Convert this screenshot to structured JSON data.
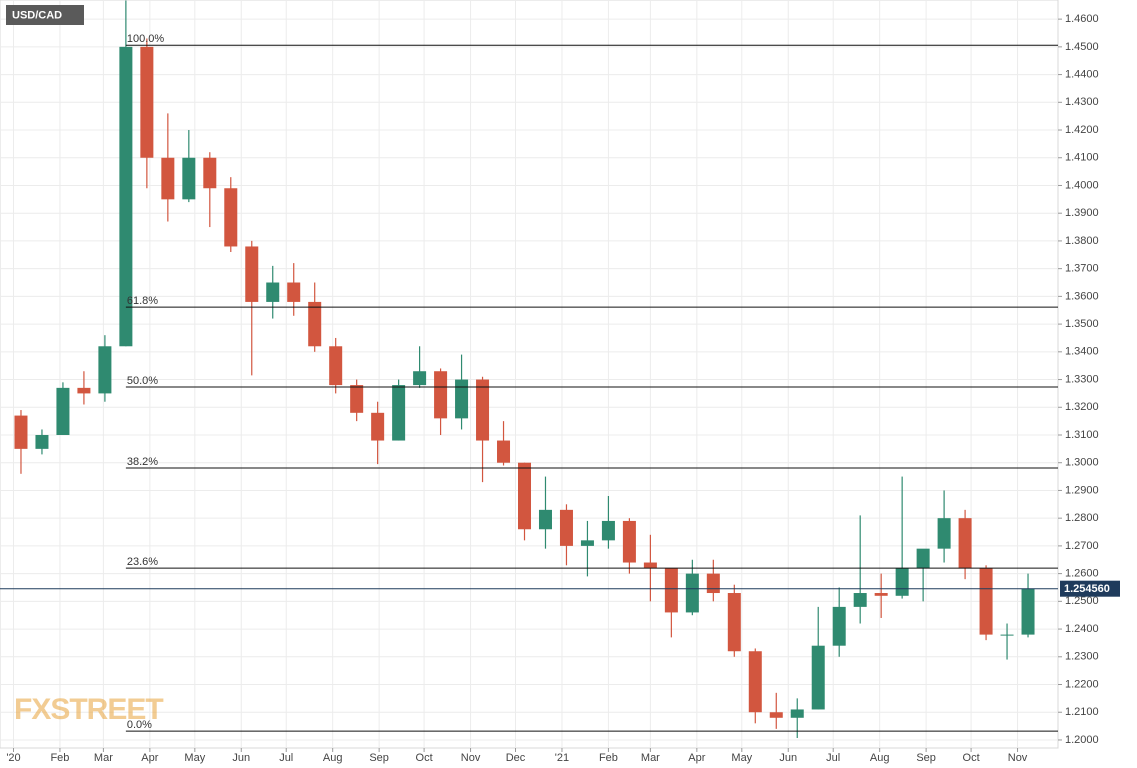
{
  "chart_data": {
    "type": "candlestick",
    "title": "USD/CAD",
    "watermark": "FXSTREET",
    "up_color": "#2f8a70",
    "down_color": "#d2563f",
    "grid": true,
    "x": [
      -2,
      12,
      26,
      40,
      54,
      68,
      82,
      96,
      110,
      124,
      138,
      152,
      166,
      180,
      194,
      208,
      222,
      236,
      250,
      264,
      278,
      292,
      306,
      320,
      334,
      348,
      362,
      376,
      390,
      404,
      418,
      432,
      446,
      460,
      474,
      488,
      502,
      516,
      530,
      544,
      558,
      572,
      586,
      600,
      614,
      628,
      642,
      656,
      670
    ],
    "open": [
      1.317,
      1.305,
      1.31,
      1.327,
      1.325,
      1.342,
      1.45,
      1.41,
      1.395,
      1.41,
      1.399,
      1.378,
      1.358,
      1.365,
      1.358,
      1.342,
      1.328,
      1.318,
      1.308,
      1.328,
      1.333,
      1.316,
      1.33,
      1.308,
      1.3,
      1.276,
      1.283,
      1.27,
      1.272,
      1.279,
      1.264,
      1.262,
      1.246,
      1.26,
      1.253,
      1.232,
      1.21,
      1.208,
      1.211,
      1.234,
      1.248,
      1.253,
      1.252,
      1.262,
      1.269,
      1.28,
      1.262,
      1.238,
      1.238
    ],
    "high": [
      1.319,
      1.312,
      1.329,
      1.333,
      1.346,
      1.4667,
      1.453,
      1.426,
      1.42,
      1.412,
      1.403,
      1.38,
      1.371,
      1.372,
      1.365,
      1.345,
      1.33,
      1.322,
      1.33,
      1.342,
      1.334,
      1.339,
      1.331,
      1.315,
      1.3,
      1.295,
      1.285,
      1.279,
      1.288,
      1.28,
      1.274,
      1.262,
      1.265,
      1.265,
      1.256,
      1.233,
      1.217,
      1.215,
      1.248,
      1.255,
      1.281,
      1.26,
      1.295,
      1.268,
      1.29,
      1.283,
      1.263,
      1.242,
      1.26
    ],
    "low": [
      1.296,
      1.303,
      1.31,
      1.321,
      1.322,
      1.342,
      1.399,
      1.387,
      1.394,
      1.385,
      1.376,
      1.3315,
      1.352,
      1.353,
      1.34,
      1.325,
      1.315,
      1.2995,
      1.308,
      1.327,
      1.31,
      1.312,
      1.293,
      1.299,
      1.272,
      1.269,
      1.263,
      1.259,
      1.269,
      1.26,
      1.25,
      1.237,
      1.245,
      1.25,
      1.23,
      1.206,
      1.204,
      1.2007,
      1.211,
      1.23,
      1.242,
      1.244,
      1.251,
      1.25,
      1.264,
      1.258,
      1.236,
      1.229,
      1.237
    ],
    "close": [
      1.305,
      1.31,
      1.327,
      1.325,
      1.342,
      1.45,
      1.41,
      1.395,
      1.41,
      1.399,
      1.378,
      1.358,
      1.365,
      1.358,
      1.342,
      1.328,
      1.318,
      1.308,
      1.328,
      1.333,
      1.316,
      1.33,
      1.308,
      1.3,
      1.276,
      1.283,
      1.27,
      1.272,
      1.279,
      1.264,
      1.262,
      1.246,
      1.26,
      1.253,
      1.232,
      1.21,
      1.208,
      1.211,
      1.234,
      1.248,
      1.253,
      1.252,
      1.262,
      1.269,
      1.28,
      1.262,
      1.238,
      1.238,
      1.25456
    ],
    "current_price": {
      "value": 1.25456,
      "label": "1.254560",
      "color": "#1f3b5c"
    },
    "fib_levels": [
      {
        "name": "100.0%",
        "value": 1.4506
      },
      {
        "name": "61.8%",
        "value": 1.3561
      },
      {
        "name": "50.0%",
        "value": 1.3273
      },
      {
        "name": "38.2%",
        "value": 1.2981
      },
      {
        "name": "23.6%",
        "value": 1.262
      },
      {
        "name": "0.0%",
        "value": 1.2032
      }
    ],
    "xlim": [
      -9,
      697
    ],
    "xticks": [
      {
        "value": 0,
        "label": "'20"
      },
      {
        "value": 31,
        "label": "Feb"
      },
      {
        "value": 60,
        "label": "Mar"
      },
      {
        "value": 91,
        "label": "Apr"
      },
      {
        "value": 121,
        "label": "May"
      },
      {
        "value": 152,
        "label": "Jun"
      },
      {
        "value": 182,
        "label": "Jul"
      },
      {
        "value": 213,
        "label": "Aug"
      },
      {
        "value": 244,
        "label": "Sep"
      },
      {
        "value": 274,
        "label": "Oct"
      },
      {
        "value": 305,
        "label": "Nov"
      },
      {
        "value": 335,
        "label": "Dec"
      },
      {
        "value": 366,
        "label": "'21"
      },
      {
        "value": 397,
        "label": "Feb"
      },
      {
        "value": 425,
        "label": "Mar"
      },
      {
        "value": 456,
        "label": "Apr"
      },
      {
        "value": 486,
        "label": "May"
      },
      {
        "value": 517,
        "label": "Jun"
      },
      {
        "value": 547,
        "label": "Jul"
      },
      {
        "value": 578,
        "label": "Aug"
      },
      {
        "value": 609,
        "label": "Sep"
      },
      {
        "value": 639,
        "label": "Oct"
      },
      {
        "value": 670,
        "label": "Nov"
      }
    ],
    "ylim": [
      1.1971,
      1.4669
    ],
    "yticks": [
      {
        "value": 1.2,
        "label": "1.2000"
      },
      {
        "value": 1.21,
        "label": "1.2100"
      },
      {
        "value": 1.22,
        "label": "1.2200"
      },
      {
        "value": 1.23,
        "label": "1.2300"
      },
      {
        "value": 1.24,
        "label": "1.2400"
      },
      {
        "value": 1.25,
        "label": "1.2500"
      },
      {
        "value": 1.26,
        "label": "1.2600"
      },
      {
        "value": 1.27,
        "label": "1.2700"
      },
      {
        "value": 1.28,
        "label": "1.2800"
      },
      {
        "value": 1.29,
        "label": "1.2900"
      },
      {
        "value": 1.3,
        "label": "1.3000"
      },
      {
        "value": 1.31,
        "label": "1.3100"
      },
      {
        "value": 1.32,
        "label": "1.3200"
      },
      {
        "value": 1.33,
        "label": "1.3300"
      },
      {
        "value": 1.34,
        "label": "1.3400"
      },
      {
        "value": 1.35,
        "label": "1.3500"
      },
      {
        "value": 1.36,
        "label": "1.3600"
      },
      {
        "value": 1.37,
        "label": "1.3700"
      },
      {
        "value": 1.38,
        "label": "1.3800"
      },
      {
        "value": 1.39,
        "label": "1.3900"
      },
      {
        "value": 1.4,
        "label": "1.4000"
      },
      {
        "value": 1.41,
        "label": "1.4100"
      },
      {
        "value": 1.42,
        "label": "1.4200"
      },
      {
        "value": 1.43,
        "label": "1.4300"
      },
      {
        "value": 1.44,
        "label": "1.4400"
      },
      {
        "value": 1.45,
        "label": "1.4500"
      },
      {
        "value": 1.46,
        "label": "1.4600"
      }
    ]
  }
}
